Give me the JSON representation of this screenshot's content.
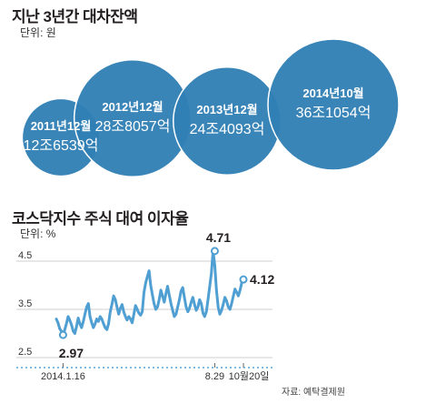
{
  "colors": {
    "bubble": "#2f7eb4",
    "bubble_stroke": "#ffffff",
    "line": "#4f9fd3",
    "grid": "#cfcfcf",
    "dot": "#7fbbe3"
  },
  "chart1": {
    "title": "지난 3년간 대차잔액",
    "unit": "단위: 원"
  },
  "chart2": {
    "title": "코스닥지수 주식 대여 이자율",
    "unit": "단위: %",
    "source": "자료: 예탁결제원"
  },
  "chart_data": [
    {
      "type": "bubble",
      "title": "지난 3년간 대차잔액",
      "unit": "원",
      "categories": [
        "2011년12월",
        "2012년12월",
        "2013년12월",
        "2014년10월"
      ],
      "labels": [
        "12조6539억",
        "28조8057억",
        "24조4093억",
        "36조1054억"
      ],
      "values": [
        12.6539,
        28.8057,
        24.4093,
        36.1054
      ]
    },
    {
      "type": "line",
      "title": "코스닥지수 주식 대여 이자율",
      "ylabel": "단위: %",
      "ylim": [
        2.5,
        4.5
      ],
      "yticks": [
        "4.5",
        "3.5",
        "2.5"
      ],
      "xticks": [
        "2014.1.16",
        "8.29",
        "10월20일"
      ],
      "annotations": [
        {
          "label": "2.97",
          "value": 2.97,
          "date": "2014.1.16"
        },
        {
          "label": "4.71",
          "value": 4.71,
          "date": "8.29"
        },
        {
          "label": "4.12",
          "value": 4.12,
          "date": "10월20일"
        }
      ],
      "series": [
        {
          "values": [
            3.3,
            3.22,
            3.1,
            3.05,
            2.97,
            3.08,
            3.2,
            3.35,
            3.28,
            3.18,
            3.05,
            3.0,
            3.15,
            3.32,
            3.2,
            3.12,
            3.25,
            3.4,
            3.55,
            3.62,
            3.35,
            3.22,
            3.12,
            3.2,
            3.3,
            3.25,
            3.35,
            3.3,
            3.2,
            3.12,
            3.08,
            3.2,
            3.45,
            3.6,
            3.78,
            3.7,
            3.55,
            3.4,
            3.52,
            3.6,
            3.45,
            3.35,
            3.28,
            3.35,
            3.3,
            3.22,
            3.4,
            3.58,
            3.5,
            3.42,
            3.38,
            3.45,
            3.85,
            4.05,
            4.18,
            4.3,
            4.0,
            3.8,
            3.62,
            3.5,
            3.55,
            3.7,
            3.9,
            3.78,
            3.65,
            3.82,
            3.98,
            3.8,
            3.62,
            3.48,
            3.35,
            3.4,
            3.55,
            3.7,
            3.88,
            3.95,
            3.75,
            3.55,
            3.45,
            3.52,
            3.65,
            3.75,
            3.6,
            3.48,
            3.55,
            3.7,
            3.62,
            3.42,
            3.35,
            3.45,
            3.7,
            3.98,
            4.25,
            4.71,
            4.4,
            3.9,
            3.55,
            3.4,
            3.48,
            3.6,
            3.75,
            3.68,
            3.55,
            3.5,
            3.62,
            3.78,
            3.92,
            3.85,
            3.78,
            3.9,
            4.05,
            4.12
          ]
        }
      ]
    }
  ]
}
